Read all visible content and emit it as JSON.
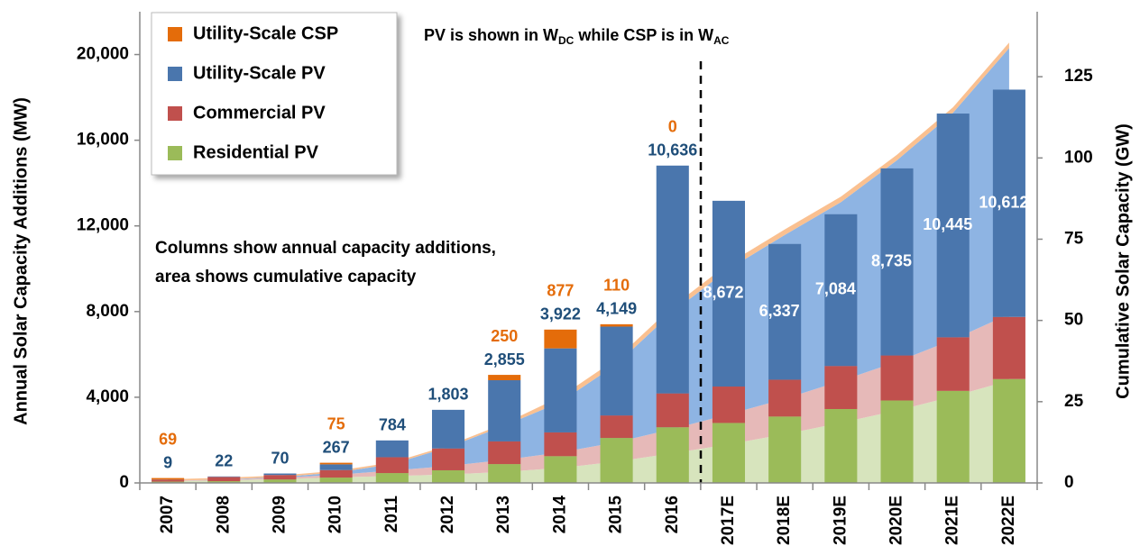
{
  "chart_data": {
    "type": "bar",
    "y_label": "Annual Solar Capacity Additions (MW)",
    "y2_label": "Cumulative Solar Capacity (GW)",
    "unit_note": [
      "PV is shown in W",
      "DC",
      " while CSP is in W",
      "AC"
    ],
    "annotations": [
      "Columns show annual capacity additions,",
      "area shows cumulative capacity"
    ],
    "categories": [
      "2007",
      "2008",
      "2009",
      "2010",
      "2011",
      "2012",
      "2013",
      "2014",
      "2015",
      "2016",
      "2017E",
      "2018E",
      "2019E",
      "2020E",
      "2021E",
      "2022E"
    ],
    "ylim": [
      0,
      22000
    ],
    "yticks": [
      0,
      {
        "value": 4000,
        "label": "4,000"
      },
      {
        "value": 8000,
        "label": "8,000"
      },
      {
        "value": 12000,
        "label": "12,000"
      },
      {
        "value": 16000,
        "label": "16,000"
      },
      {
        "value": 20000,
        "label": "20,000"
      }
    ],
    "y2lim": [
      0,
      145
    ],
    "y2ticks": [
      0,
      25,
      50,
      75,
      100,
      125
    ],
    "legend": "top-left",
    "series": [
      {
        "name": "Residential PV",
        "color": "#9bbb59",
        "values": [
          60,
          80,
          160,
          250,
          460,
          590,
          880,
          1250,
          2100,
          2600,
          2800,
          3100,
          3450,
          3850,
          4300,
          4850
        ]
      },
      {
        "name": "Commercial PV",
        "color": "#c0504d",
        "values": [
          90,
          200,
          210,
          350,
          740,
          1020,
          1060,
          1110,
          1050,
          1580,
          1700,
          1720,
          2010,
          2100,
          2500,
          2900
        ]
      },
      {
        "name": "Utility-Scale PV",
        "color": "#4a76ad",
        "values": [
          9,
          22,
          70,
          267,
          784,
          1803,
          2855,
          3922,
          4149,
          10636,
          8672,
          6337,
          7084,
          8735,
          10445,
          10612
        ],
        "value_labels": [
          "9",
          "22",
          "70",
          "267",
          "784",
          "1,803",
          "2,855",
          "3,922",
          "4,149",
          "10,636",
          "8,672",
          "6,337",
          "7,084",
          "8,735",
          "10,445",
          "10,612"
        ]
      },
      {
        "name": "Utility-Scale CSP",
        "color": "#e46c0a",
        "values": [
          69,
          null,
          null,
          75,
          null,
          null,
          250,
          877,
          110,
          0,
          null,
          null,
          null,
          null,
          null,
          null
        ]
      }
    ],
    "areas": [
      {
        "axis": "y2",
        "color": "#d7e4bd",
        "values": [
          0.5,
          0.8,
          1.2,
          1.7,
          2.1,
          2.6,
          3.4,
          4.6,
          6.6,
          9.1,
          11.9,
          15,
          18.5,
          22.3,
          26.6,
          31.5
        ]
      },
      {
        "axis": "y2",
        "color": "#e6b9b8",
        "values": [
          0.1,
          0.2,
          0.4,
          0.8,
          1.7,
          2.6,
          3.7,
          4.8,
          5.9,
          7.5,
          9.2,
          10.9,
          12.9,
          15,
          17.5,
          20.4
        ]
      },
      {
        "axis": "y2",
        "color": "#8eb4e3",
        "values": [
          0.0,
          0.1,
          0.2,
          0.7,
          2.0,
          5.8,
          10.5,
          15.5,
          24,
          36,
          44.7,
          50.4,
          55,
          62,
          69.8,
          81.9
        ]
      },
      {
        "axis": "y2",
        "color": "#fac090",
        "values": [
          0.5,
          0.5,
          0.5,
          0.5,
          0.5,
          0.5,
          0.7,
          1.6,
          1.7,
          1.7,
          1.7,
          1.7,
          1.7,
          1.7,
          1.7,
          1.7
        ]
      }
    ]
  }
}
